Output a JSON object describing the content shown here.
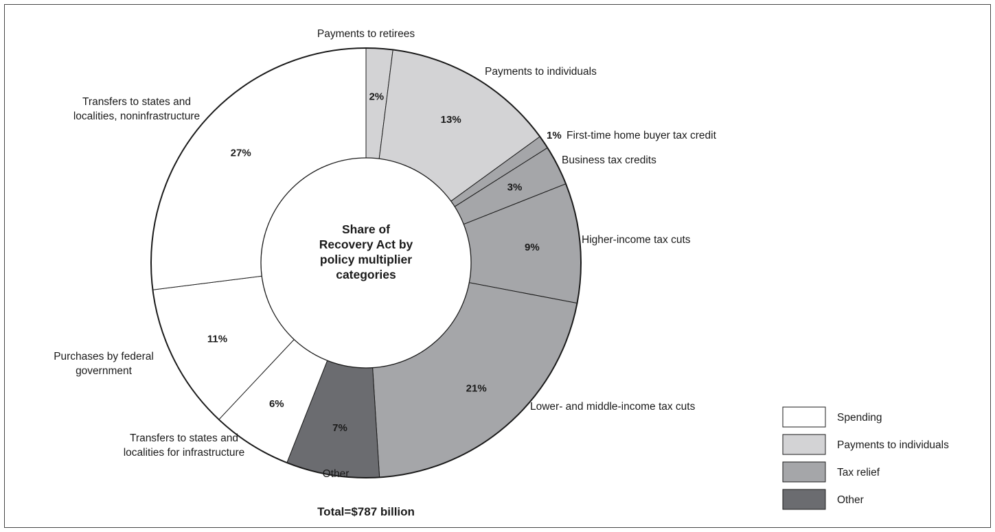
{
  "chart_data": {
    "type": "pie",
    "center_title": "Share of Recovery Act by policy multiplier categories",
    "total_label": "Total=$787 billion",
    "colors": {
      "Spending": "#ffffff",
      "Payments to individuals": "#d3d3d5",
      "Tax relief": "#a5a6a9",
      "Other": "#6b6c70"
    },
    "legend": [
      {
        "name": "Spending",
        "color": "#ffffff"
      },
      {
        "name": "Payments to individuals",
        "color": "#d3d3d5"
      },
      {
        "name": "Tax relief",
        "color": "#a5a6a9"
      },
      {
        "name": "Other",
        "color": "#6b6c70"
      }
    ],
    "legend_position": "bottom-right",
    "slices": [
      {
        "label": "Payments to retirees",
        "value": 2,
        "pct_text": "2%",
        "group": "Payments to individuals"
      },
      {
        "label": "Payments to individuals",
        "value": 13,
        "pct_text": "13%",
        "group": "Payments to individuals"
      },
      {
        "label": "First-time home buyer tax credit",
        "value": 1,
        "pct_text": "1%",
        "group": "Tax relief"
      },
      {
        "label": "Business tax credits",
        "value": 3,
        "pct_text": "3%",
        "group": "Tax relief"
      },
      {
        "label": "Higher-income tax cuts",
        "value": 9,
        "pct_text": "9%",
        "group": "Tax relief"
      },
      {
        "label": "Lower- and middle-income tax cuts",
        "value": 21,
        "pct_text": "21%",
        "group": "Tax relief"
      },
      {
        "label": "Other",
        "value": 7,
        "pct_text": "7%",
        "group": "Other"
      },
      {
        "label": "Transfers to states and localities for infrastructure",
        "value": 6,
        "pct_text": "6%",
        "group": "Spending"
      },
      {
        "label": "Purchases by federal government",
        "value": 11,
        "pct_text": "11%",
        "group": "Spending"
      },
      {
        "label": "Transfers to states and localities, noninfrastructure",
        "value": 27,
        "pct_text": "27%",
        "group": "Spending"
      }
    ]
  }
}
